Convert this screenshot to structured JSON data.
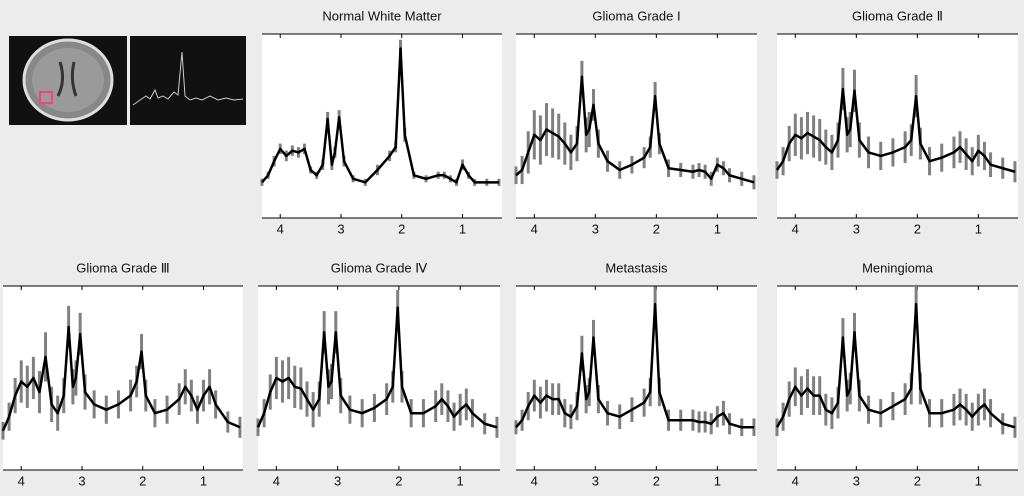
{
  "chart_data": [
    {
      "type": "line",
      "title": "Normal White Matter",
      "xlim": [
        4.3,
        0.35
      ],
      "ylim": [
        0,
        100
      ],
      "xticks": [
        4,
        3,
        2,
        1
      ],
      "color": "#000000",
      "error_color": "#808080",
      "x": [
        4.3,
        4.2,
        4.1,
        4.0,
        3.9,
        3.8,
        3.7,
        3.6,
        3.5,
        3.4,
        3.3,
        3.22,
        3.15,
        3.1,
        3.03,
        2.95,
        2.8,
        2.6,
        2.4,
        2.2,
        2.1,
        2.02,
        1.95,
        1.8,
        1.6,
        1.4,
        1.3,
        1.2,
        1.1,
        1.0,
        0.9,
        0.8,
        0.6,
        0.4
      ],
      "values": [
        18,
        22,
        30,
        37,
        33,
        36,
        35,
        37,
        25,
        22,
        28,
        54,
        28,
        35,
        55,
        30,
        20,
        18,
        25,
        33,
        38,
        94,
        45,
        22,
        20,
        22,
        22,
        20,
        18,
        28,
        22,
        18,
        18,
        18
      ],
      "errors": [
        2,
        2,
        3,
        3,
        3,
        3,
        3,
        3,
        2,
        2,
        3,
        4,
        3,
        3,
        4,
        3,
        2,
        2,
        3,
        3,
        3,
        5,
        4,
        2,
        2,
        2,
        2,
        2,
        2,
        3,
        2,
        2,
        2,
        2
      ]
    },
    {
      "type": "line",
      "title": "Glioma Grade I",
      "xlim": [
        4.3,
        0.35
      ],
      "ylim": [
        0,
        100
      ],
      "xticks": [
        4,
        3,
        2,
        1
      ],
      "color": "#000000",
      "error_color": "#808080",
      "x": [
        4.3,
        4.2,
        4.1,
        4.0,
        3.9,
        3.8,
        3.7,
        3.6,
        3.5,
        3.4,
        3.3,
        3.22,
        3.15,
        3.1,
        3.03,
        2.95,
        2.8,
        2.6,
        2.4,
        2.2,
        2.1,
        2.02,
        1.95,
        1.8,
        1.6,
        1.4,
        1.3,
        1.2,
        1.1,
        1.0,
        0.9,
        0.8,
        0.6,
        0.4
      ],
      "values": [
        22,
        25,
        35,
        45,
        42,
        48,
        46,
        44,
        40,
        35,
        40,
        78,
        45,
        48,
        62,
        40,
        30,
        25,
        28,
        32,
        38,
        67,
        40,
        26,
        25,
        24,
        25,
        24,
        20,
        28,
        26,
        22,
        20,
        18
      ],
      "errors": [
        5,
        8,
        12,
        14,
        14,
        15,
        14,
        13,
        12,
        10,
        10,
        9,
        10,
        10,
        9,
        8,
        6,
        5,
        5,
        6,
        6,
        8,
        6,
        5,
        4,
        4,
        4,
        4,
        4,
        4,
        4,
        4,
        4,
        4
      ]
    },
    {
      "type": "line",
      "title": "Glioma Grade Ⅱ",
      "xlim": [
        4.3,
        0.35
      ],
      "ylim": [
        0,
        100
      ],
      "xticks": [
        4,
        3,
        2,
        1
      ],
      "color": "#000000",
      "error_color": "#808080",
      "x": [
        4.3,
        4.2,
        4.1,
        4.0,
        3.9,
        3.8,
        3.7,
        3.6,
        3.5,
        3.4,
        3.3,
        3.22,
        3.15,
        3.1,
        3.03,
        2.95,
        2.8,
        2.6,
        2.4,
        2.2,
        2.1,
        2.02,
        1.95,
        1.8,
        1.6,
        1.4,
        1.3,
        1.2,
        1.1,
        1.0,
        0.9,
        0.8,
        0.6,
        0.4
      ],
      "values": [
        25,
        30,
        40,
        45,
        43,
        46,
        44,
        42,
        38,
        35,
        42,
        71,
        45,
        48,
        70,
        42,
        35,
        33,
        35,
        38,
        42,
        67,
        40,
        30,
        32,
        35,
        38,
        34,
        30,
        36,
        33,
        28,
        26,
        24
      ],
      "errors": [
        5,
        8,
        10,
        12,
        12,
        12,
        12,
        12,
        10,
        10,
        10,
        12,
        10,
        10,
        12,
        10,
        9,
        8,
        8,
        9,
        9,
        12,
        9,
        8,
        8,
        9,
        9,
        9,
        8,
        9,
        8,
        7,
        6,
        6
      ]
    },
    {
      "type": "line",
      "title": "Glioma Grade Ⅲ",
      "xlim": [
        4.3,
        0.35
      ],
      "ylim": [
        0,
        100
      ],
      "xticks": [
        4,
        3,
        2,
        1
      ],
      "color": "#000000",
      "error_color": "#808080",
      "x": [
        4.3,
        4.2,
        4.1,
        4.0,
        3.9,
        3.8,
        3.7,
        3.6,
        3.5,
        3.4,
        3.3,
        3.22,
        3.15,
        3.1,
        3.03,
        2.95,
        2.8,
        2.6,
        2.4,
        2.2,
        2.1,
        2.02,
        1.95,
        1.8,
        1.6,
        1.4,
        1.3,
        1.2,
        1.1,
        1.0,
        0.9,
        0.8,
        0.6,
        0.4
      ],
      "values": [
        20,
        28,
        40,
        48,
        45,
        50,
        42,
        62,
        35,
        30,
        40,
        79,
        45,
        50,
        75,
        42,
        35,
        32,
        35,
        40,
        48,
        65,
        40,
        30,
        32,
        38,
        45,
        40,
        32,
        40,
        45,
        35,
        25,
        22
      ],
      "errors": [
        5,
        8,
        10,
        12,
        12,
        12,
        12,
        14,
        10,
        10,
        10,
        12,
        10,
        10,
        12,
        10,
        8,
        8,
        8,
        9,
        9,
        10,
        9,
        8,
        8,
        9,
        10,
        9,
        8,
        9,
        10,
        8,
        6,
        6
      ]
    },
    {
      "type": "line",
      "title": "Glioma Grade Ⅳ",
      "xlim": [
        4.3,
        0.35
      ],
      "ylim": [
        0,
        100
      ],
      "xticks": [
        4,
        3,
        2,
        1
      ],
      "color": "#000000",
      "error_color": "#808080",
      "x": [
        4.3,
        4.2,
        4.1,
        4.0,
        3.9,
        3.8,
        3.7,
        3.6,
        3.5,
        3.4,
        3.3,
        3.22,
        3.15,
        3.1,
        3.03,
        2.95,
        2.8,
        2.6,
        2.4,
        2.2,
        2.1,
        2.02,
        1.95,
        1.8,
        1.6,
        1.4,
        1.3,
        1.2,
        1.1,
        1.0,
        0.9,
        0.8,
        0.6,
        0.4
      ],
      "values": [
        22,
        30,
        42,
        50,
        48,
        50,
        45,
        44,
        38,
        32,
        38,
        76,
        45,
        48,
        76,
        40,
        32,
        30,
        33,
        38,
        45,
        90,
        45,
        30,
        30,
        34,
        38,
        34,
        28,
        32,
        35,
        30,
        24,
        22
      ],
      "errors": [
        5,
        8,
        10,
        12,
        12,
        12,
        12,
        12,
        10,
        10,
        10,
        12,
        10,
        10,
        12,
        10,
        8,
        8,
        8,
        9,
        9,
        10,
        9,
        8,
        8,
        9,
        9,
        9,
        8,
        9,
        9,
        8,
        6,
        6
      ]
    },
    {
      "type": "line",
      "title": "Metastasis",
      "xlim": [
        4.3,
        0.35
      ],
      "ylim": [
        0,
        100
      ],
      "xticks": [
        4,
        3,
        2,
        1
      ],
      "color": "#000000",
      "error_color": "#808080",
      "x": [
        4.3,
        4.2,
        4.1,
        4.0,
        3.9,
        3.8,
        3.7,
        3.6,
        3.5,
        3.4,
        3.3,
        3.22,
        3.15,
        3.1,
        3.03,
        2.95,
        2.8,
        2.6,
        2.4,
        2.2,
        2.1,
        2.02,
        1.95,
        1.8,
        1.6,
        1.4,
        1.3,
        1.2,
        1.1,
        1.0,
        0.9,
        0.8,
        0.6,
        0.4
      ],
      "values": [
        22,
        26,
        34,
        40,
        36,
        40,
        38,
        38,
        30,
        28,
        34,
        64,
        38,
        42,
        73,
        38,
        30,
        28,
        32,
        36,
        42,
        92,
        42,
        26,
        26,
        26,
        25,
        25,
        24,
        28,
        30,
        24,
        22,
        22
      ],
      "errors": [
        4,
        6,
        8,
        9,
        9,
        9,
        9,
        9,
        8,
        7,
        8,
        10,
        8,
        8,
        10,
        8,
        7,
        7,
        7,
        8,
        8,
        10,
        8,
        6,
        6,
        6,
        6,
        6,
        6,
        6,
        7,
        6,
        5,
        5
      ]
    },
    {
      "type": "line",
      "title": "Meningioma",
      "xlim": [
        4.3,
        0.35
      ],
      "ylim": [
        0,
        100
      ],
      "xticks": [
        4,
        3,
        2,
        1
      ],
      "color": "#000000",
      "error_color": "#808080",
      "x": [
        4.3,
        4.2,
        4.1,
        4.0,
        3.9,
        3.8,
        3.7,
        3.6,
        3.5,
        3.4,
        3.3,
        3.22,
        3.15,
        3.1,
        3.03,
        2.95,
        2.8,
        2.6,
        2.4,
        2.2,
        2.1,
        2.02,
        1.95,
        1.8,
        1.6,
        1.4,
        1.3,
        1.2,
        1.1,
        1.0,
        0.9,
        0.8,
        0.6,
        0.4
      ],
      "values": [
        22,
        28,
        38,
        45,
        40,
        44,
        40,
        40,
        32,
        30,
        36,
        73,
        40,
        44,
        76,
        40,
        32,
        30,
        34,
        38,
        44,
        92,
        44,
        30,
        30,
        32,
        35,
        32,
        28,
        32,
        35,
        30,
        24,
        22
      ],
      "errors": [
        5,
        8,
        10,
        11,
        11,
        11,
        11,
        11,
        9,
        9,
        9,
        11,
        9,
        9,
        11,
        9,
        8,
        8,
        8,
        9,
        9,
        11,
        9,
        8,
        8,
        9,
        9,
        9,
        8,
        9,
        9,
        8,
        6,
        6
      ]
    }
  ]
}
